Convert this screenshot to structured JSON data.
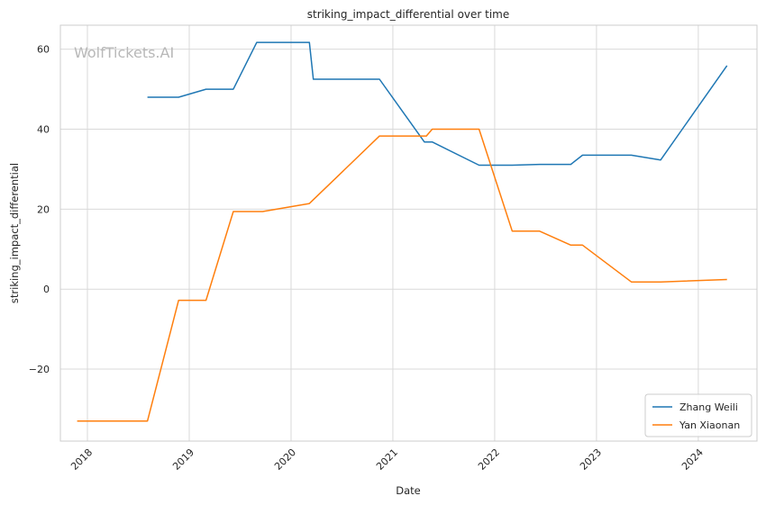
{
  "watermark": "WolfTickets.AI",
  "chart_data": {
    "type": "line",
    "title": "striking_impact_differential over time",
    "xlabel": "Date",
    "ylabel": "striking_impact_differential",
    "x_ticks": [
      "2018",
      "2019",
      "2020",
      "2021",
      "2022",
      "2023",
      "2024"
    ],
    "y_ticks": [
      -20,
      0,
      20,
      40,
      60
    ],
    "xlim": [
      "2017-09-26",
      "2024-07-30"
    ],
    "ylim": [
      -38,
      66
    ],
    "grid": true,
    "legend_position": "bottom-right",
    "series": [
      {
        "name": "Zhang Weili",
        "color": "#1f77b4",
        "points": [
          [
            "2018-08-04",
            48.0
          ],
          [
            "2018-11-24",
            48.0
          ],
          [
            "2019-03-02",
            50.0
          ],
          [
            "2019-06-08",
            50.0
          ],
          [
            "2019-08-31",
            61.7
          ],
          [
            "2020-03-07",
            61.7
          ],
          [
            "2020-03-21",
            52.5
          ],
          [
            "2020-11-14",
            52.5
          ],
          [
            "2021-04-24",
            36.8
          ],
          [
            "2021-05-22",
            36.8
          ],
          [
            "2021-11-06",
            31.0
          ],
          [
            "2022-03-05",
            31.0
          ],
          [
            "2022-06-11",
            31.2
          ],
          [
            "2022-10-01",
            31.2
          ],
          [
            "2022-11-12",
            33.5
          ],
          [
            "2023-05-06",
            33.5
          ],
          [
            "2023-08-19",
            32.3
          ],
          [
            "2024-04-13",
            55.9
          ]
        ]
      },
      {
        "name": "Yan Xiaonan",
        "color": "#ff7f0e",
        "points": [
          [
            "2017-11-25",
            -33.0
          ],
          [
            "2018-08-04",
            -33.0
          ],
          [
            "2018-11-24",
            -2.8
          ],
          [
            "2019-03-02",
            -2.8
          ],
          [
            "2019-06-08",
            19.4
          ],
          [
            "2019-09-21",
            19.4
          ],
          [
            "2020-03-07",
            21.4
          ],
          [
            "2020-11-14",
            38.3
          ],
          [
            "2021-05-01",
            38.3
          ],
          [
            "2021-05-22",
            40.0
          ],
          [
            "2021-11-06",
            40.0
          ],
          [
            "2022-03-05",
            14.5
          ],
          [
            "2022-06-11",
            14.5
          ],
          [
            "2022-10-01",
            11.0
          ],
          [
            "2022-11-12",
            11.0
          ],
          [
            "2023-05-06",
            1.8
          ],
          [
            "2023-08-19",
            1.8
          ],
          [
            "2024-04-13",
            2.4
          ]
        ]
      }
    ]
  }
}
